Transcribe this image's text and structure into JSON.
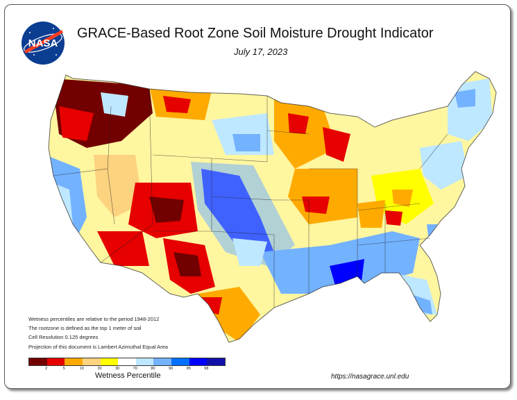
{
  "title": "GRACE-Based Root Zone Soil  Moisture Drought Indicator",
  "date": "July 17, 2023",
  "logo_text": "NASA",
  "notes": [
    "Wetness percentiles are relative to the period 1948-2012",
    "The rootzone is defined as the top 1 meter of soil",
    "Cell Resolution 0.125 degrees",
    "Projection of this document is Lambert Azimuthal Equal Area"
  ],
  "legend": {
    "label": "Wetness Percentile",
    "ticks": [
      "2",
      "5",
      "10",
      "20",
      "30",
      "70",
      "80",
      "90",
      "95",
      "98"
    ],
    "colors": [
      "#730000",
      "#e60000",
      "#ffaa00",
      "#fcd37f",
      "#ffff00",
      "#ffffff",
      "#bee8ff",
      "#73b2ff",
      "#0070ff",
      "#0000ff",
      "#1111aa"
    ]
  },
  "url": "https://nasagrace.unl.edu",
  "colors": {
    "exceptional_dry": "#730000",
    "extreme_dry": "#e60000",
    "severe_dry": "#ffaa00",
    "moderate_dry": "#fcd37f",
    "abnormal_dry": "#ffff00",
    "normal": "#ffffff",
    "wet": "#73b2ff",
    "very_wet": "#0000ff"
  }
}
